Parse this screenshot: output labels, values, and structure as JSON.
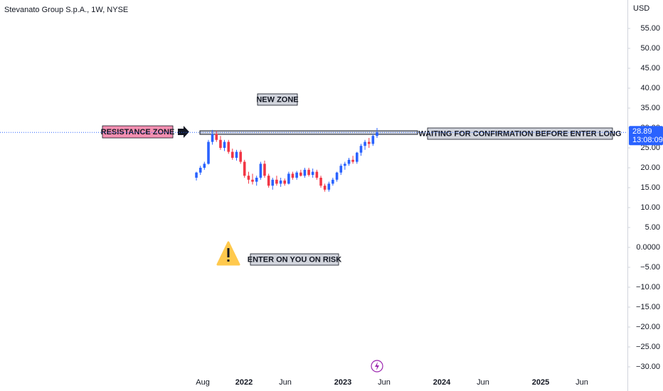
{
  "chart_data": {
    "type": "candlestick",
    "title": "Stevanato Group S.p.A., 1W, NYSE",
    "currency": "USD",
    "last_price": 28.89,
    "countdown": "13:08:09",
    "up_color": "#2962ff",
    "down_color": "#f23645",
    "xlim": [
      2019.532,
      2025.863
    ],
    "ylim": [
      -32.14,
      62.14
    ],
    "xticks": [
      {
        "value": 2021.583,
        "label": "Aug"
      },
      {
        "value": 2022,
        "label": "2022"
      },
      {
        "value": 2022.417,
        "label": "Jun"
      },
      {
        "value": 2023,
        "label": "2023"
      },
      {
        "value": 2023.417,
        "label": "Jun"
      },
      {
        "value": 2024,
        "label": "2024"
      },
      {
        "value": 2024.417,
        "label": "Jun"
      },
      {
        "value": 2025,
        "label": "2025"
      },
      {
        "value": 2025.417,
        "label": "Jun"
      }
    ],
    "yticks": [
      {
        "value": 55,
        "label": "55.00"
      },
      {
        "value": 50,
        "label": "50.00"
      },
      {
        "value": 45,
        "label": "45.00"
      },
      {
        "value": 40,
        "label": "40.00"
      },
      {
        "value": 35,
        "label": "35.00"
      },
      {
        "value": 30,
        "label": "30.00"
      },
      {
        "value": 25,
        "label": "25.00"
      },
      {
        "value": 20,
        "label": "20.00"
      },
      {
        "value": 15,
        "label": "15.00"
      },
      {
        "value": 10,
        "label": "10.00"
      },
      {
        "value": 5,
        "label": "5.00"
      },
      {
        "value": 0,
        "label": "0.0000"
      },
      {
        "value": -5,
        "label": "−5.00"
      },
      {
        "value": -10,
        "label": "−10.00"
      },
      {
        "value": -15,
        "label": "−15.00"
      },
      {
        "value": -20,
        "label": "−20.00"
      },
      {
        "value": -25,
        "label": "−25.00"
      },
      {
        "value": -30,
        "label": "−30.00"
      }
    ],
    "x": [
      2021.518,
      2021.559,
      2021.599,
      2021.64,
      2021.68,
      2021.721,
      2021.762,
      2021.802,
      2021.843,
      2021.883,
      2021.924,
      2021.965,
      2022.005,
      2022.046,
      2022.086,
      2022.127,
      2022.168,
      2022.208,
      2022.249,
      2022.289,
      2022.33,
      2022.371,
      2022.411,
      2022.452,
      2022.492,
      2022.533,
      2022.574,
      2022.614,
      2022.655,
      2022.695,
      2022.736,
      2022.777,
      2022.817,
      2022.858,
      2022.898,
      2022.939,
      2022.98,
      2023.02,
      2023.061,
      2023.101,
      2023.142,
      2023.183,
      2023.223,
      2023.264,
      2023.304,
      2023.345
    ],
    "open": [
      17.5,
      18.8,
      20,
      21,
      26.5,
      28.5,
      27,
      25,
      26.5,
      24,
      22.5,
      24,
      21.5,
      18,
      17,
      16.5,
      17.5,
      21,
      18,
      15.5,
      17,
      16,
      16.8,
      16,
      18.5,
      17.5,
      18.8,
      18,
      19.5,
      18.2,
      19,
      17.5,
      15.5,
      14.5,
      16,
      17,
      18.8,
      20.5,
      21,
      22,
      21.5,
      23.8,
      25.5,
      26.5,
      26,
      28
    ],
    "high": [
      19,
      20.5,
      21.5,
      27,
      29.5,
      29.3,
      28,
      27,
      27,
      24.8,
      24.5,
      24.5,
      22,
      19,
      18.5,
      18,
      21.5,
      21.8,
      18.5,
      17.5,
      18,
      17.5,
      17.3,
      19,
      19,
      19.2,
      19.5,
      20,
      20,
      19.8,
      19.5,
      18,
      16,
      16.5,
      17.5,
      19,
      21,
      21.5,
      22.5,
      23,
      24,
      26,
      27,
      27.5,
      28.5,
      30
    ],
    "low": [
      16.8,
      18.2,
      19.5,
      20.8,
      25.8,
      26.5,
      24.5,
      24.2,
      23.5,
      22,
      21.8,
      21,
      17.5,
      16,
      15.8,
      15.5,
      17,
      17.5,
      15,
      14.5,
      15.5,
      15.2,
      15.5,
      15.8,
      17,
      17,
      17.8,
      17.5,
      17.8,
      17.5,
      17,
      15,
      14,
      14,
      15.5,
      16.5,
      18.2,
      19.5,
      20.5,
      21,
      21,
      23,
      24.5,
      25,
      25.5,
      27.5
    ],
    "close": [
      18.8,
      20,
      21,
      26.5,
      28.5,
      27,
      25,
      26.5,
      24,
      22.5,
      24,
      21.5,
      18,
      17,
      16.5,
      17.5,
      21,
      18,
      15.5,
      17,
      16,
      16.8,
      16,
      18.5,
      17.5,
      18.8,
      18,
      19.5,
      18.2,
      19,
      17.5,
      15.5,
      14.5,
      16,
      17,
      18.8,
      20.5,
      21,
      22,
      21.5,
      23.8,
      25.5,
      26.5,
      26,
      28,
      28.89
    ],
    "annotations": {
      "new_zone": "NEW ZONE",
      "resistance_zone": "RESISTANCE ZONE",
      "waiting": "WAITING FOR CONFIRMATION BEFORE  ENTER LONG",
      "risk": "ENTER ON YOU ON RISK"
    }
  }
}
